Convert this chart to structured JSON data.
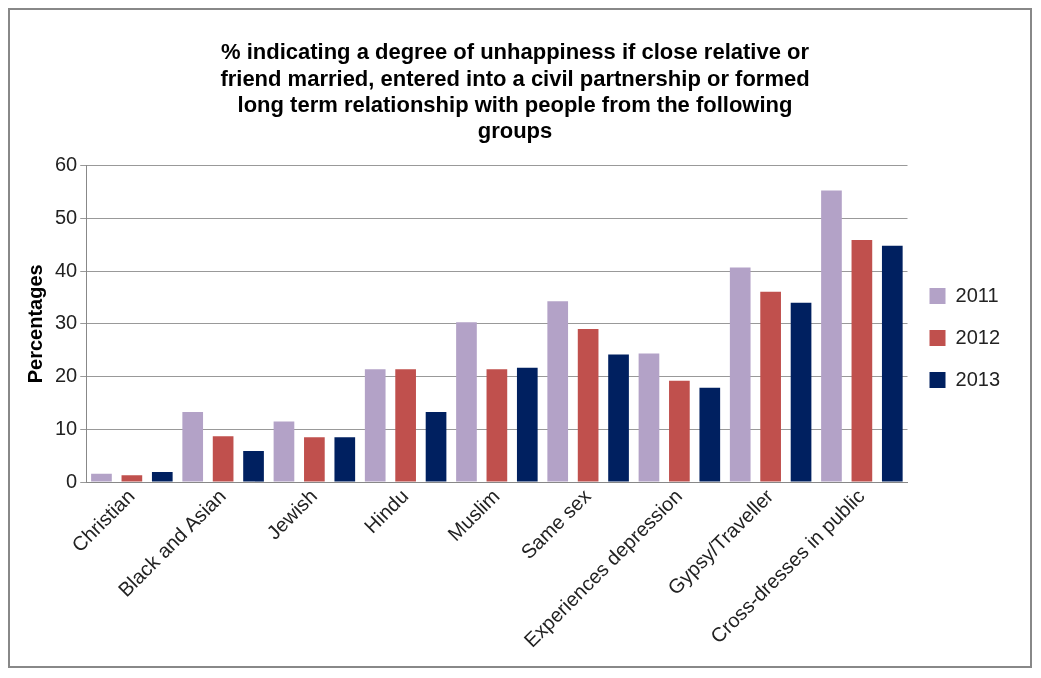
{
  "chart_data": {
    "type": "bar",
    "title": "% indicating a degree of unhappiness if close relative or friend married, entered into a civil partnership or formed long term relationship with people from the following groups",
    "ylabel": "Percentages",
    "categories": [
      "Christian",
      "Black and Asian",
      "Jewish",
      "Hindu",
      "Muslim",
      "Same sex",
      "Experiences depression",
      "Gypsy/Traveller",
      "Cross-dresses in public"
    ],
    "series": [
      {
        "name": "2011",
        "color": "#b3a2c7",
        "values": [
          1.6,
          13.3,
          11.5,
          21.4,
          30.3,
          34.3,
          24.4,
          40.7,
          55.3
        ]
      },
      {
        "name": "2012",
        "color": "#c0504d",
        "values": [
          1.3,
          8.7,
          8.5,
          21.4,
          21.4,
          29.0,
          19.2,
          36.1,
          45.9
        ]
      },
      {
        "name": "2013",
        "color": "#002060",
        "values": [
          1.9,
          5.9,
          8.5,
          13.3,
          21.7,
          24.2,
          17.9,
          34.0,
          44.8
        ]
      }
    ],
    "ylim": [
      0,
      60
    ],
    "yticks": [
      0,
      10,
      20,
      30,
      40,
      50,
      60
    ],
    "grid": "y",
    "legend": "right"
  }
}
